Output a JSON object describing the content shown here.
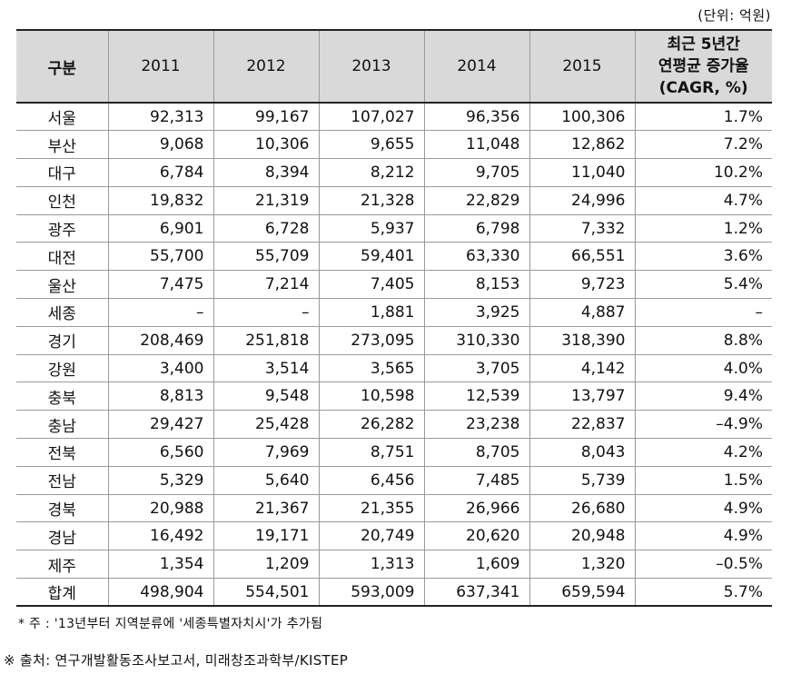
{
  "unit_label": "(단위: 억원)",
  "header": {
    "region": "구분",
    "years": [
      "2011",
      "2012",
      "2013",
      "2014",
      "2015"
    ],
    "cagr_lines": [
      "최근 5년간",
      "연평균 증가율",
      "(CAGR, %)"
    ]
  },
  "rows": [
    {
      "region": "서울",
      "values": [
        "92,313",
        "99,167",
        "107,027",
        "96,356",
        "100,306"
      ],
      "cagr": "1.7%"
    },
    {
      "region": "부산",
      "values": [
        "9,068",
        "10,306",
        "9,655",
        "11,048",
        "12,862"
      ],
      "cagr": "7.2%"
    },
    {
      "region": "대구",
      "values": [
        "6,784",
        "8,394",
        "8,212",
        "9,705",
        "11,040"
      ],
      "cagr": "10.2%"
    },
    {
      "region": "인천",
      "values": [
        "19,832",
        "21,319",
        "21,328",
        "22,829",
        "24,996"
      ],
      "cagr": "4.7%"
    },
    {
      "region": "광주",
      "values": [
        "6,901",
        "6,728",
        "5,937",
        "6,798",
        "7,332"
      ],
      "cagr": "1.2%"
    },
    {
      "region": "대전",
      "values": [
        "55,700",
        "55,709",
        "59,401",
        "63,330",
        "66,551"
      ],
      "cagr": "3.6%"
    },
    {
      "region": "울산",
      "values": [
        "7,475",
        "7,214",
        "7,405",
        "8,153",
        "9,723"
      ],
      "cagr": "5.4%"
    },
    {
      "region": "세종",
      "values": [
        "–",
        "–",
        "1,881",
        "3,925",
        "4,887"
      ],
      "cagr": "–"
    },
    {
      "region": "경기",
      "values": [
        "208,469",
        "251,818",
        "273,095",
        "310,330",
        "318,390"
      ],
      "cagr": "8.8%"
    },
    {
      "region": "강원",
      "values": [
        "3,400",
        "3,514",
        "3,565",
        "3,705",
        "4,142"
      ],
      "cagr": "4.0%"
    },
    {
      "region": "충북",
      "values": [
        "8,813",
        "9,548",
        "10,598",
        "12,539",
        "13,797"
      ],
      "cagr": "9.4%"
    },
    {
      "region": "충남",
      "values": [
        "29,427",
        "25,428",
        "26,282",
        "23,238",
        "22,837"
      ],
      "cagr": "–4.9%"
    },
    {
      "region": "전북",
      "values": [
        "6,560",
        "7,969",
        "8,751",
        "8,705",
        "8,043"
      ],
      "cagr": "4.2%"
    },
    {
      "region": "전남",
      "values": [
        "5,329",
        "5,640",
        "6,456",
        "7,485",
        "5,739"
      ],
      "cagr": "1.5%"
    },
    {
      "region": "경북",
      "values": [
        "20,988",
        "21,367",
        "21,355",
        "26,966",
        "26,680"
      ],
      "cagr": "4.9%"
    },
    {
      "region": "경남",
      "values": [
        "16,492",
        "19,171",
        "20,749",
        "20,620",
        "20,948"
      ],
      "cagr": "4.9%"
    },
    {
      "region": "제주",
      "values": [
        "1,354",
        "1,209",
        "1,313",
        "1,609",
        "1,320"
      ],
      "cagr": "–0.5%"
    },
    {
      "region": "합계",
      "values": [
        "498,904",
        "554,501",
        "593,009",
        "637,341",
        "659,594"
      ],
      "cagr": "5.7%"
    }
  ],
  "note": "* 주 : '13년부터 지역분류에 '세종특별자치시'가 추가됨",
  "source": "※ 출처: 연구개발활동조사보고서, 미래창조과학부/KISTEP"
}
